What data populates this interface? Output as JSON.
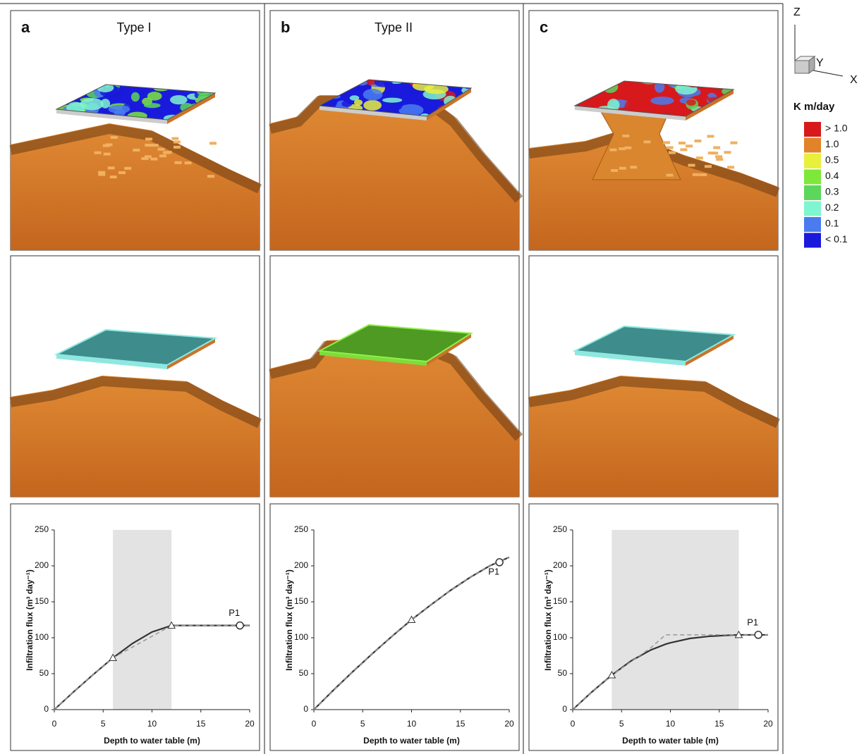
{
  "panels": [
    {
      "label": "a",
      "title": "Type I"
    },
    {
      "label": "b",
      "title": "Type II"
    },
    {
      "label": "c"
    }
  ],
  "axes_triad": {
    "z": "Z",
    "y": "Y",
    "x": "X"
  },
  "colorbar": {
    "title": "K m/day",
    "entries": [
      {
        "label": "> 1.0",
        "color": "#d7191c"
      },
      {
        "label": "1.0",
        "color": "#e2832a"
      },
      {
        "label": "0.5",
        "color": "#e8f03c"
      },
      {
        "label": "0.4",
        "color": "#7ee83a"
      },
      {
        "label": "0.3",
        "color": "#5cd75c"
      },
      {
        "label": "0.2",
        "color": "#7ff5d0"
      },
      {
        "label": "0.1",
        "color": "#4a7cf0"
      },
      {
        "label": "< 0.1",
        "color": "#1a1adc"
      }
    ]
  },
  "chart_data": [
    {
      "type": "line",
      "xlabel": "Depth to water table (m)",
      "ylabel": "Infiltration flux (m³ day⁻¹)",
      "x": [
        0,
        2,
        4,
        6,
        8,
        10,
        12,
        14,
        16,
        18,
        20
      ],
      "series": [
        {
          "color": "#333333",
          "style": "solid",
          "values": [
            0,
            25,
            49,
            72,
            92,
            108,
            117,
            117,
            117,
            117,
            117
          ]
        },
        {
          "color": "#999999",
          "style": "dashed",
          "values": [
            0,
            25,
            49,
            72,
            87,
            102,
            117,
            117,
            117,
            117,
            117
          ]
        }
      ],
      "xlim": [
        0,
        20
      ],
      "xticks": [
        0,
        5,
        10,
        15,
        20
      ],
      "ylim": [
        0,
        250
      ],
      "yticks": [
        0,
        50,
        100,
        150,
        200,
        250
      ],
      "shade": [
        6,
        12
      ],
      "markers": {
        "x": [
          6,
          12
        ],
        "y": [
          72,
          117
        ]
      },
      "point": {
        "label": "P1",
        "x": 19,
        "y": 117
      }
    },
    {
      "type": "line",
      "xlabel": "Depth to water table (m)",
      "ylabel": "Infiltration flux (m³ day⁻¹)",
      "x": [
        0,
        2,
        4,
        6,
        8,
        10,
        12,
        14,
        16,
        18,
        20
      ],
      "series": [
        {
          "color": "#333333",
          "style": "solid",
          "values": [
            0,
            27,
            53,
            78,
            102,
            125,
            146,
            166,
            184,
            200,
            212
          ]
        },
        {
          "color": "#999999",
          "style": "dashed",
          "values": [
            0,
            27,
            53,
            78,
            102,
            125,
            146,
            166,
            184,
            200,
            212
          ]
        }
      ],
      "xlim": [
        0,
        20
      ],
      "xticks": [
        0,
        5,
        10,
        15,
        20
      ],
      "ylim": [
        0,
        250
      ],
      "yticks": [
        0,
        50,
        100,
        150,
        200,
        250
      ],
      "markers": {
        "x": [
          10
        ],
        "y": [
          125
        ]
      },
      "point": {
        "label": "P1",
        "x": 19,
        "y": 205
      }
    },
    {
      "type": "line",
      "xlabel": "Depth to water table (m)",
      "ylabel": "Infiltration flux (m³ day⁻¹)",
      "x": [
        0,
        2,
        4,
        6,
        8,
        9.5,
        10,
        12,
        14,
        16,
        17,
        20
      ],
      "series": [
        {
          "color": "#333333",
          "style": "solid",
          "values": [
            0,
            25,
            48,
            68,
            83,
            91,
            93,
            99,
            102,
            103.5,
            104,
            104
          ]
        },
        {
          "color": "#999999",
          "style": "dashed",
          "values": [
            0,
            25,
            48,
            67,
            86,
            104,
            104,
            104,
            104,
            104,
            104,
            104
          ]
        }
      ],
      "xlim": [
        0,
        20
      ],
      "xticks": [
        0,
        5,
        10,
        15,
        20
      ],
      "ylim": [
        0,
        250
      ],
      "yticks": [
        0,
        50,
        100,
        150,
        200,
        250
      ],
      "shade": [
        4,
        17
      ],
      "markers": {
        "x": [
          4,
          17
        ],
        "y": [
          48,
          104
        ]
      },
      "point": {
        "label": "P1",
        "x": 19,
        "y": 104
      }
    }
  ]
}
